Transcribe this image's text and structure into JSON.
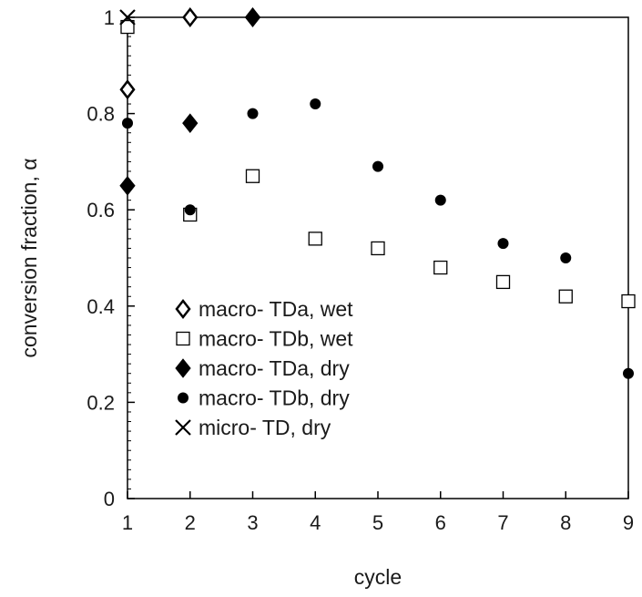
{
  "chart_data": {
    "type": "scatter",
    "title": "",
    "xlabel": "cycle",
    "ylabel": "conversion fraction, α",
    "xlim": [
      1,
      9
    ],
    "ylim": [
      0,
      1
    ],
    "xticks": [
      1,
      2,
      3,
      4,
      5,
      6,
      7,
      8,
      9
    ],
    "yticks": [
      0,
      0.2,
      0.4,
      0.6,
      0.8,
      1
    ],
    "ytick_labels": [
      "0",
      "0.2",
      "0.4",
      "0.6",
      "0.8",
      "1"
    ],
    "grid": false,
    "legend_position": "bottom-left",
    "series": [
      {
        "name": "macro- TDa, wet",
        "marker": "open-diamond",
        "x": [
          1,
          2,
          3
        ],
        "y": [
          0.85,
          1.0,
          1.0
        ]
      },
      {
        "name": "macro- TDb, wet",
        "marker": "open-square",
        "x": [
          1,
          2,
          3,
          4,
          5,
          6,
          7,
          8,
          9
        ],
        "y": [
          0.98,
          0.59,
          0.67,
          0.54,
          0.52,
          0.48,
          0.45,
          0.42,
          0.41
        ]
      },
      {
        "name": "macro- TDa, dry",
        "marker": "filled-diamond",
        "x": [
          1,
          2,
          3
        ],
        "y": [
          0.65,
          0.78,
          1.0
        ]
      },
      {
        "name": "macro- TDb, dry",
        "marker": "filled-circle",
        "x": [
          1,
          2,
          3,
          4,
          5,
          6,
          7,
          8,
          9
        ],
        "y": [
          0.78,
          0.6,
          0.8,
          0.82,
          0.69,
          0.62,
          0.53,
          0.5,
          0.26
        ]
      },
      {
        "name": "micro- TD, dry",
        "marker": "cross",
        "x": [
          1
        ],
        "y": [
          1.0
        ]
      }
    ]
  }
}
